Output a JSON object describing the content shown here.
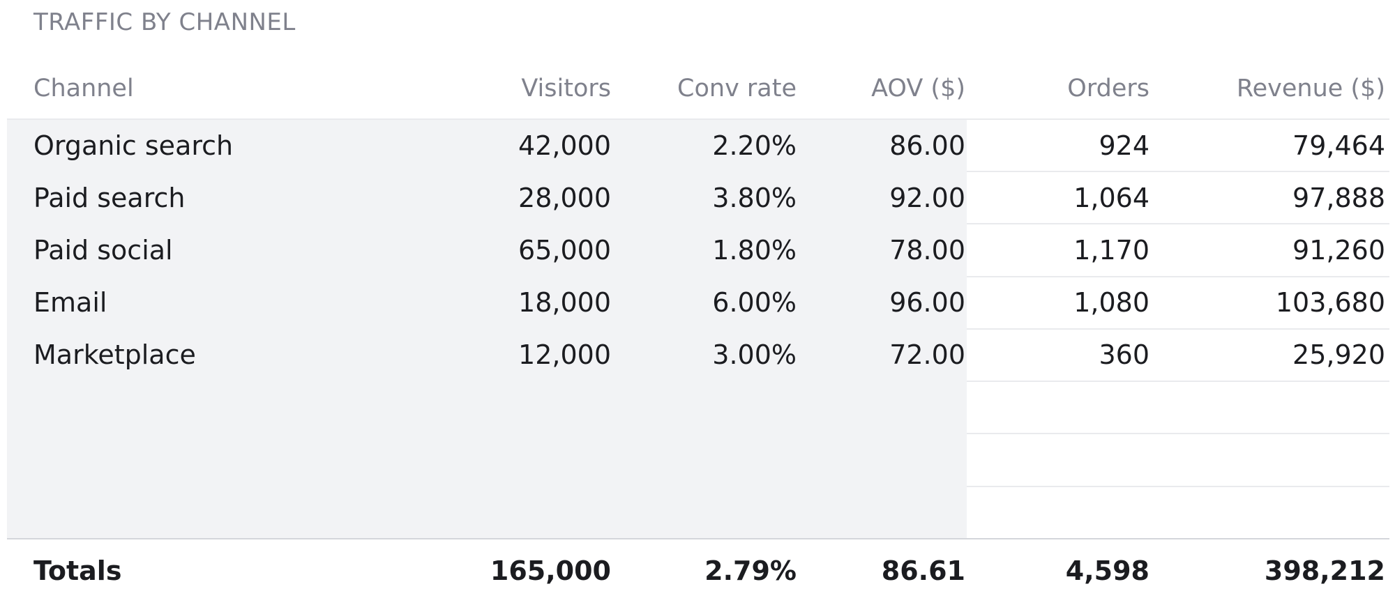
{
  "title": "TRAFFIC BY CHANNEL",
  "table": {
    "columns": [
      "Channel",
      "Visitors",
      "Conv rate",
      "AOV ($)",
      "Orders",
      "Revenue ($)"
    ],
    "rows": [
      [
        "Organic search",
        "42,000",
        "2.20%",
        "86.00",
        "924",
        "79,464"
      ],
      [
        "Paid search",
        "28,000",
        "3.80%",
        "92.00",
        "1,064",
        "97,888"
      ],
      [
        "Paid social",
        "65,000",
        "1.80%",
        "78.00",
        "1,170",
        "91,260"
      ],
      [
        "Email",
        "18,000",
        "6.00%",
        "96.00",
        "1,080",
        "103,680"
      ],
      [
        "Marketplace",
        "12,000",
        "3.00%",
        "72.00",
        "360",
        "25,920"
      ]
    ],
    "totals": [
      "Totals",
      "165,000",
      "2.79%",
      "86.61",
      "4,598",
      "398,212"
    ]
  },
  "colors": {
    "input_band": "#f2f3f5",
    "header_text": "#7f818c",
    "body_text": "#1b1c20",
    "row_rule": "#e9eaed"
  }
}
